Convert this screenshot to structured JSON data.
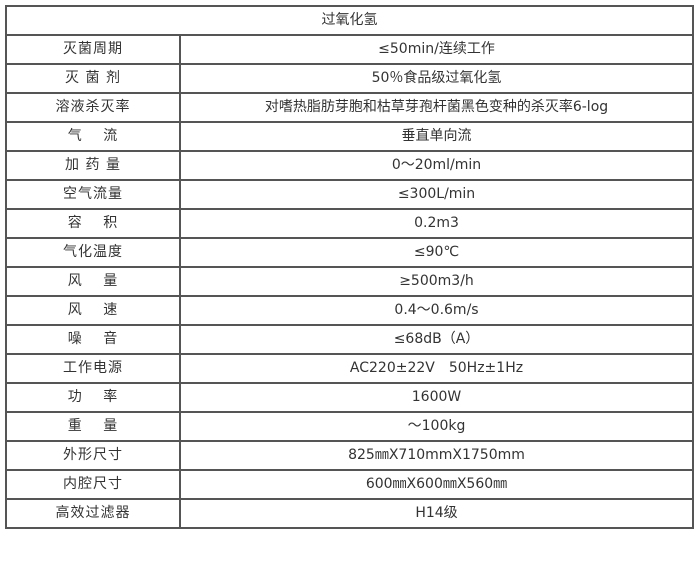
{
  "title": "过氧化氢",
  "rows": [
    {
      "label": "灭菌周期",
      "value": "≤50min/连续工作"
    },
    {
      "label": "灭 菌 剂",
      "value": "50％食品级过氧化氢"
    },
    {
      "label": "溶液杀灭率",
      "value": "对嗜热脂肪芽胞和枯草芽孢杆菌黑色变种的杀灭率6-log"
    },
    {
      "label": "气　 流",
      "value": "垂直单向流"
    },
    {
      "label": "加 药 量",
      "value": "0～20ml/min"
    },
    {
      "label": "空气流量",
      "value": "≤300L/min"
    },
    {
      "label": "容　 积",
      "value": "0.2m3"
    },
    {
      "label": "气化温度",
      "value": "≤90℃"
    },
    {
      "label": "风　 量",
      "value": "≥500m3/h"
    },
    {
      "label": "风　 速",
      "value": "0.4～0.6m/s"
    },
    {
      "label": "噪　 音",
      "value": "≤68dB（A）"
    },
    {
      "label": "工作电源",
      "value": "AC220±22V　50Hz±1Hz"
    },
    {
      "label": "功　 率",
      "value": "1600W"
    },
    {
      "label": "重　 量",
      "value": "～100kg"
    },
    {
      "label": "外形尺寸",
      "value": "825㎜X710mmX1750mm"
    },
    {
      "label": "内腔尺寸",
      "value": "600㎜X600㎜X560㎜"
    },
    {
      "label": "高效过滤器",
      "value": "H14级"
    }
  ]
}
